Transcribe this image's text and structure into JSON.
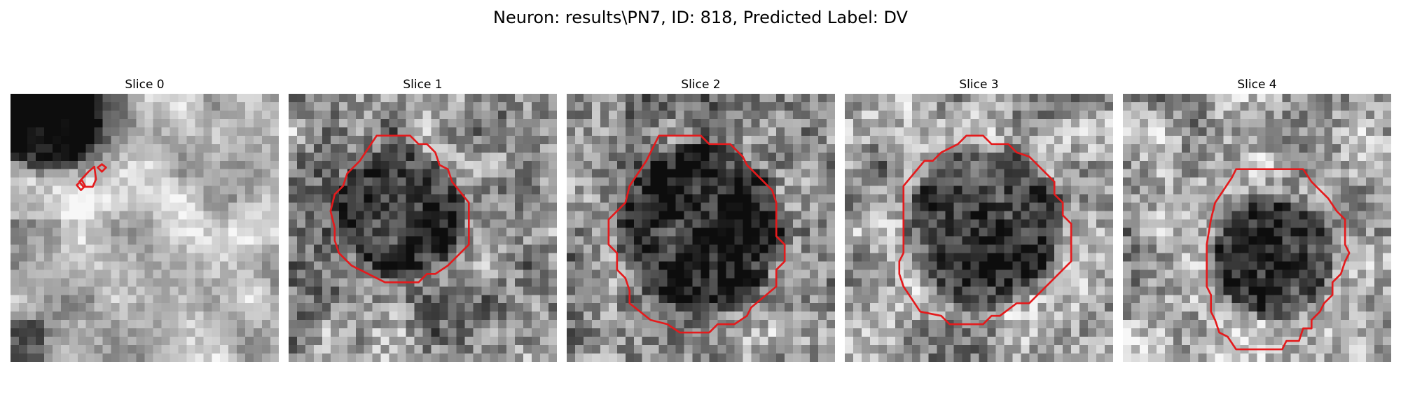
{
  "figure": {
    "title": "Neuron: results\\PN7, ID: 818, Predicted Label: DV"
  },
  "colors": {
    "contour": "#e41a1c",
    "background": "#ffffff"
  },
  "slices": [
    {
      "label": "Slice 0"
    },
    {
      "label": "Slice 1"
    },
    {
      "label": "Slice 2"
    },
    {
      "label": "Slice 3"
    },
    {
      "label": "Slice 4"
    }
  ]
}
